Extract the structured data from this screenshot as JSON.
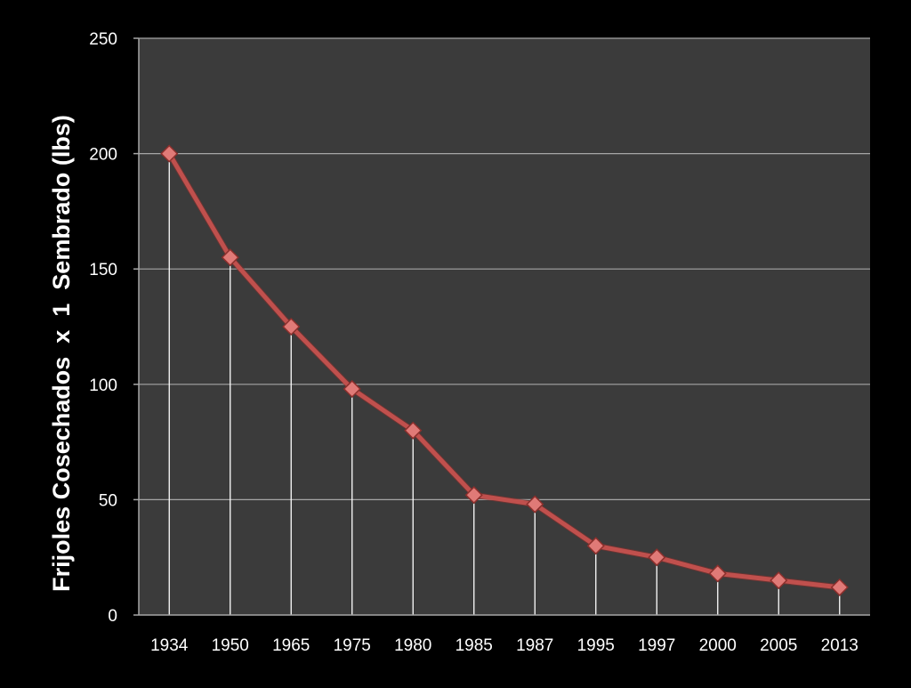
{
  "chart_data": {
    "type": "line",
    "title": "",
    "xlabel": "",
    "ylabel": "Frijoles Cosechados  x  1  Sembrado (lbs)",
    "categories": [
      "1934",
      "1950",
      "1965",
      "1975",
      "1980",
      "1985",
      "1987",
      "1995",
      "1997",
      "2000",
      "2005",
      "2013"
    ],
    "series": [
      {
        "values": [
          200,
          155,
          125,
          98,
          80,
          52,
          48,
          30,
          25,
          18,
          15,
          12
        ]
      }
    ],
    "ylim": [
      0,
      250
    ],
    "yticks": [
      "0",
      "50",
      "100",
      "150",
      "200",
      "250"
    ],
    "grid": true,
    "drop_lines": true,
    "legend": "none",
    "colors": {
      "background": "#000000",
      "plot_area": "#3b3b3b",
      "gridline": "#a6a6a6",
      "drop_line": "#ffffff",
      "line": "#c0504d",
      "marker_fill": "#e07a77",
      "marker_stroke": "#8c2f2c",
      "text": "#ffffff"
    }
  }
}
